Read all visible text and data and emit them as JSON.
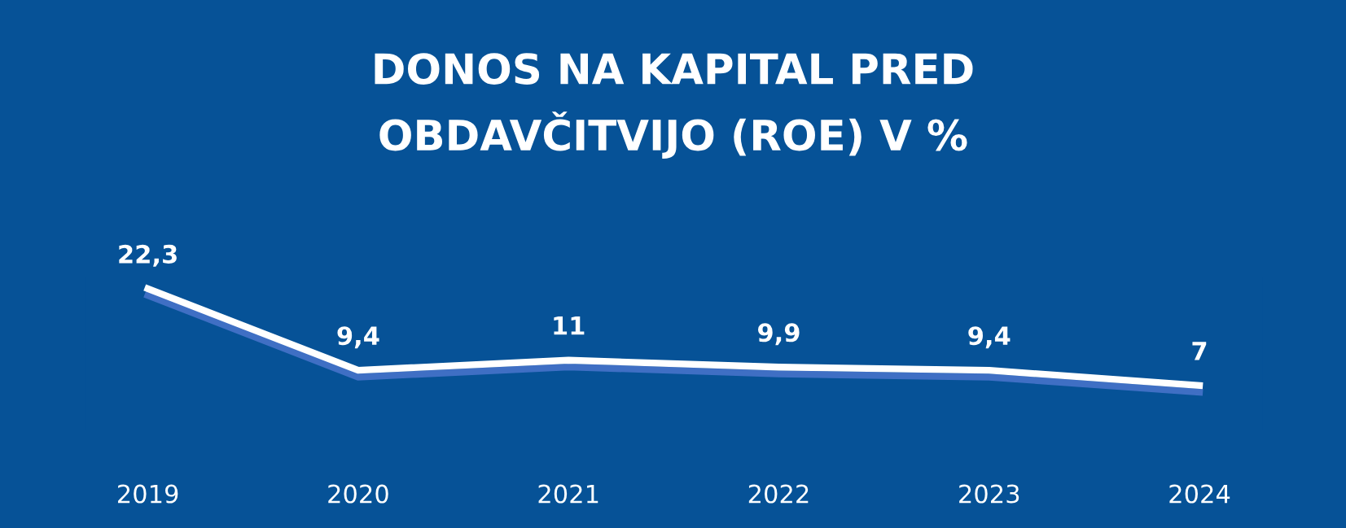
{
  "chart_data": {
    "type": "line",
    "title": "DONOS NA KAPITAL PRED\nOBDAVČITVIJO (ROE) V %",
    "categories": [
      "2019",
      "2020",
      "2021",
      "2022",
      "2023",
      "2024"
    ],
    "series": [
      {
        "color": "#ffffff",
        "values": [
          22.3,
          9.4,
          11,
          9.9,
          9.4,
          7
        ],
        "value_labels": [
          "22,3",
          "9,4",
          "11",
          "9,9",
          "9,4",
          "7"
        ]
      }
    ],
    "grid": false,
    "line_style": "solid",
    "tick_labels": "x"
  }
}
